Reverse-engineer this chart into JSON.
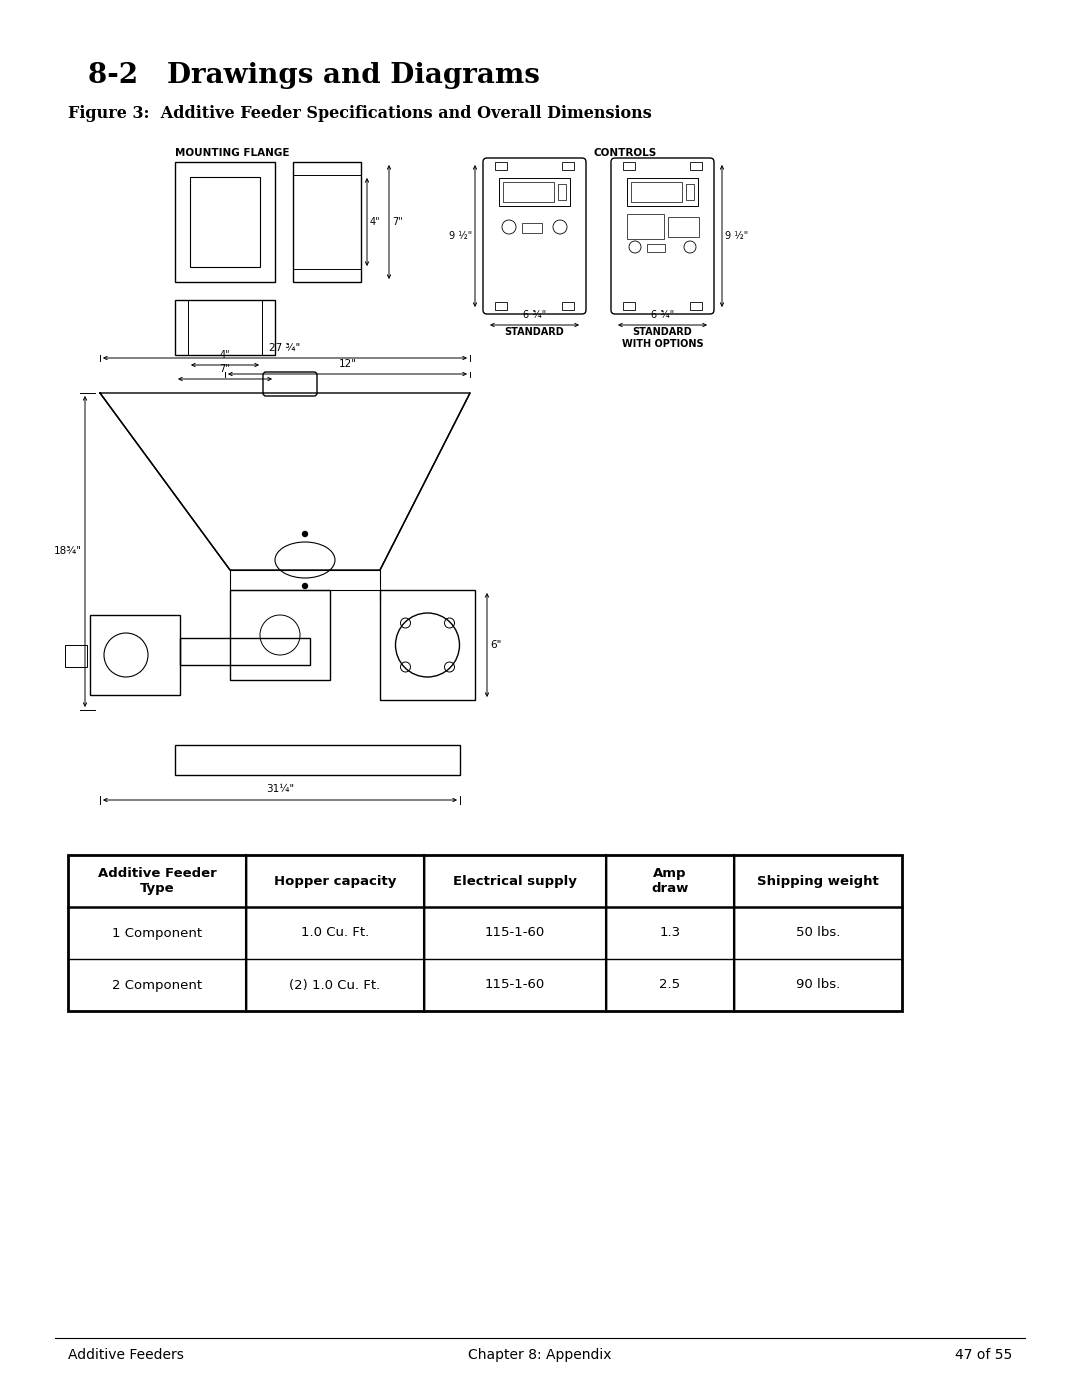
{
  "title_section": "8-2   Drawings and Diagrams",
  "figure_caption": "Figure 3:  Additive Feeder Specifications and Overall Dimensions",
  "mounting_flange_label": "MOUNTING FLANGE",
  "controls_label": "CONTROLS",
  "standard_label": "STANDARD",
  "standard_options_label": "STANDARD\nWITH OPTIONS",
  "dim_4in_inner": "4\"",
  "dim_7in_outer": "7\"",
  "dim_4in_width": "4\"",
  "dim_7in_total": "7\"",
  "dim_27_3_4": "27 ¾\"",
  "dim_12": "12\"",
  "dim_18_3_4": "18¾\"",
  "dim_6": "6\"",
  "dim_31_1_4": "31¼\"",
  "dim_9_1_2": "9 ½\"",
  "dim_6_3_4": "6 ¾\"",
  "table_headers": [
    "Additive Feeder\nType",
    "Hopper capacity",
    "Electrical supply",
    "Amp\ndraw",
    "Shipping weight"
  ],
  "table_row1": [
    "1 Component",
    "1.0 Cu. Ft.",
    "115-1-60",
    "1.3",
    "50 lbs."
  ],
  "table_row2": [
    "2 Component",
    "(2) 1.0 Cu. Ft.",
    "115-1-60",
    "2.5",
    "90 lbs."
  ],
  "footer_left": "Additive Feeders",
  "footer_center": "Chapter 8: Appendix",
  "footer_right": "47 of 55",
  "bg_color": "#ffffff",
  "line_color": "#000000"
}
